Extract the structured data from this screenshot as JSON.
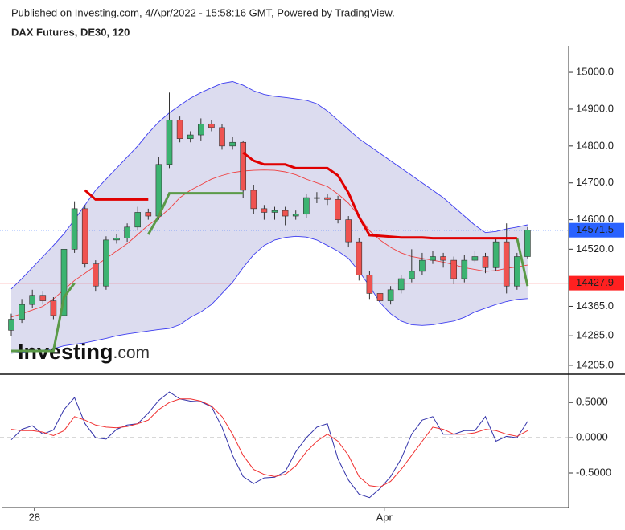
{
  "chart_data": [
    {
      "type": "candlestick",
      "title": "Published on Investing.com, 4/Apr/2022 - 15:58:16 GMT, Powered by TradingView.",
      "subtitle": "DAX Futures, DE30, 120",
      "watermark_brand": "Investing",
      "watermark_suffix": ".com",
      "open": [
        14300,
        14330,
        14370,
        14395,
        14380,
        14340,
        14520,
        14630,
        14480,
        14420,
        14545,
        14550,
        14580,
        14620,
        14610,
        14750,
        14870,
        14820,
        14830,
        14860,
        14850,
        14800,
        14810,
        14680,
        14630,
        14620,
        14625,
        14610,
        14615,
        14660,
        14660,
        14655,
        14600,
        14540,
        14450,
        14400,
        14380,
        14410,
        14440,
        14460,
        14490,
        14500,
        14490,
        14440,
        14490,
        14500,
        14470,
        14540,
        14420,
        14500
      ],
      "high": [
        14345,
        14385,
        14410,
        14405,
        14390,
        14535,
        14650,
        14640,
        14490,
        14555,
        14560,
        14590,
        14635,
        14630,
        14770,
        14945,
        14880,
        14840,
        14875,
        14870,
        14860,
        14825,
        14815,
        14695,
        14640,
        14635,
        14635,
        14625,
        14670,
        14675,
        14670,
        14665,
        14610,
        14550,
        14460,
        14410,
        14420,
        14450,
        14520,
        14510,
        14515,
        14510,
        14500,
        14505,
        14515,
        14510,
        14550,
        14590,
        14510,
        14580
      ],
      "low": [
        14285,
        14320,
        14360,
        14370,
        14330,
        14330,
        14510,
        14470,
        14405,
        14410,
        14535,
        14540,
        14570,
        14600,
        14600,
        14740,
        14810,
        14810,
        14815,
        14840,
        14790,
        14790,
        14660,
        14615,
        14600,
        14600,
        14585,
        14600,
        14605,
        14645,
        14640,
        14590,
        14525,
        14435,
        14385,
        14355,
        14370,
        14400,
        14430,
        14450,
        14480,
        14470,
        14425,
        14430,
        14485,
        14455,
        14460,
        14400,
        14410,
        14495
      ],
      "close": [
        14330,
        14370,
        14395,
        14380,
        14340,
        14520,
        14630,
        14480,
        14420,
        14545,
        14550,
        14580,
        14620,
        14610,
        14750,
        14870,
        14820,
        14830,
        14860,
        14850,
        14800,
        14810,
        14680,
        14630,
        14620,
        14625,
        14610,
        14615,
        14660,
        14660,
        14655,
        14600,
        14540,
        14450,
        14400,
        14380,
        14410,
        14440,
        14460,
        14490,
        14500,
        14490,
        14440,
        14490,
        14500,
        14470,
        14540,
        14420,
        14500,
        14571.5
      ],
      "up_color": "#3cb371",
      "down_color": "#ef5350",
      "outline_color": "#333333",
      "band_upper": [
        14412,
        14440,
        14470,
        14500,
        14530,
        14562,
        14600,
        14640,
        14680,
        14710,
        14740,
        14770,
        14800,
        14835,
        14865,
        14890,
        14910,
        14930,
        14945,
        14958,
        14970,
        14975,
        14965,
        14950,
        14940,
        14935,
        14932,
        14928,
        14924,
        14915,
        14895,
        14870,
        14845,
        14820,
        14800,
        14780,
        14760,
        14740,
        14720,
        14700,
        14680,
        14660,
        14635,
        14610,
        14585,
        14565,
        14568,
        14575,
        14580,
        14586
      ],
      "band_middle": [
        14336,
        14345,
        14355,
        14365,
        14385,
        14410,
        14435,
        14455,
        14475,
        14495,
        14515,
        14535,
        14560,
        14585,
        14605,
        14630,
        14660,
        14680,
        14695,
        14710,
        14720,
        14728,
        14732,
        14734,
        14735,
        14734,
        14730,
        14722,
        14710,
        14700,
        14690,
        14670,
        14645,
        14610,
        14570,
        14545,
        14525,
        14510,
        14500,
        14495,
        14490,
        14485,
        14478,
        14470,
        14465,
        14460,
        14462,
        14468,
        14472,
        14477
      ],
      "band_lower": [
        14238,
        14240,
        14243,
        14246,
        14250,
        14258,
        14262,
        14266,
        14272,
        14278,
        14285,
        14290,
        14294,
        14298,
        14302,
        14305,
        14315,
        14335,
        14350,
        14370,
        14400,
        14430,
        14470,
        14505,
        14530,
        14545,
        14552,
        14555,
        14553,
        14545,
        14530,
        14515,
        14495,
        14460,
        14420,
        14375,
        14345,
        14325,
        14315,
        14313,
        14315,
        14320,
        14325,
        14335,
        14350,
        14360,
        14370,
        14378,
        14384,
        14386
      ],
      "band_color": "#3c3cf0",
      "band_fill": "#dcdcef",
      "middle_color": "#f04040",
      "trend_up": [
        14244,
        14244,
        14244,
        14244,
        14244,
        14390,
        14428,
        null,
        null,
        null,
        null,
        null,
        null,
        14560,
        14610,
        14672,
        14672,
        14672,
        14672,
        14672,
        14672,
        14672,
        14672,
        null,
        null,
        null,
        null,
        null,
        null,
        null,
        null,
        null,
        null,
        null,
        null,
        null,
        null,
        null,
        null,
        null,
        null,
        null,
        null,
        null,
        null,
        null,
        null,
        null,
        14550,
        14420
      ],
      "trend_down": [
        null,
        null,
        null,
        null,
        null,
        null,
        null,
        14680,
        14655,
        14655,
        14655,
        14655,
        14655,
        14655,
        null,
        null,
        null,
        null,
        null,
        null,
        null,
        null,
        14782,
        14760,
        14750,
        14750,
        14750,
        14740,
        14740,
        14740,
        14740,
        14720,
        14673,
        14608,
        14558,
        14556,
        14554,
        14552,
        14552,
        14552,
        14550,
        14550,
        14550,
        14550,
        14550,
        14550,
        14550,
        14550,
        14550,
        null
      ],
      "trend_up_color": "#5b9a48",
      "trend_down_color": "#e00000",
      "hline": 14427.9,
      "hline_color": "#ff2020",
      "last_color": "#2962ff",
      "xlim": [
        -0.84,
        52.9
      ],
      "ylim": [
        14183,
        15072
      ],
      "yticks": [
        {
          "value": 15000,
          "label": "15000.0"
        },
        {
          "value": 14900,
          "label": "14900.0"
        },
        {
          "value": 14800,
          "label": "14800.0"
        },
        {
          "value": 14700,
          "label": "14700.0"
        },
        {
          "value": 14600,
          "label": "14600.0"
        },
        {
          "value": 14520,
          "label": "14520.0"
        },
        {
          "value": 14365,
          "label": "14365.0"
        },
        {
          "value": 14285,
          "label": "14285.0"
        },
        {
          "value": 14205,
          "label": "14205.0"
        }
      ]
    },
    {
      "type": "line",
      "series": [
        {
          "color": "#3333aa",
          "values": [
            -0.03,
            0.12,
            0.17,
            0.05,
            0.11,
            0.4,
            0.57,
            0.2,
            0.0,
            -0.02,
            0.12,
            0.18,
            0.2,
            0.35,
            0.53,
            0.65,
            0.55,
            0.52,
            0.51,
            0.44,
            0.15,
            -0.25,
            -0.55,
            -0.65,
            -0.57,
            -0.56,
            -0.48,
            -0.2,
            0.0,
            0.15,
            0.2,
            -0.3,
            -0.6,
            -0.8,
            -0.85,
            -0.72,
            -0.55,
            -0.3,
            0.05,
            0.25,
            0.3,
            0.05,
            0.05,
            0.1,
            0.1,
            0.3,
            -0.05,
            0.02,
            0.0,
            0.23
          ]
        },
        {
          "color": "#f03030",
          "values": [
            0.12,
            0.1,
            0.1,
            0.08,
            0.03,
            0.1,
            0.3,
            0.25,
            0.18,
            0.15,
            0.14,
            0.16,
            0.2,
            0.25,
            0.4,
            0.5,
            0.55,
            0.55,
            0.52,
            0.45,
            0.3,
            0.05,
            -0.25,
            -0.45,
            -0.52,
            -0.55,
            -0.52,
            -0.4,
            -0.2,
            -0.05,
            0.05,
            -0.05,
            -0.25,
            -0.55,
            -0.68,
            -0.7,
            -0.62,
            -0.45,
            -0.25,
            -0.05,
            0.15,
            0.12,
            0.05,
            0.05,
            0.07,
            0.12,
            0.1,
            0.05,
            0.02,
            0.1
          ]
        }
      ],
      "xlim": [
        -0.84,
        52.9
      ],
      "ylim": [
        -0.99,
        0.89
      ],
      "yticks": [
        {
          "value": 0.5,
          "label": "0.5000"
        },
        {
          "value": 0,
          "label": "0.0000"
        },
        {
          "value": -0.5,
          "label": "-0.5000"
        }
      ],
      "zero_line": 0,
      "xticks": [
        {
          "value": 2.2,
          "label": "28"
        },
        {
          "value": 35.4,
          "label": "Apr"
        }
      ]
    }
  ]
}
